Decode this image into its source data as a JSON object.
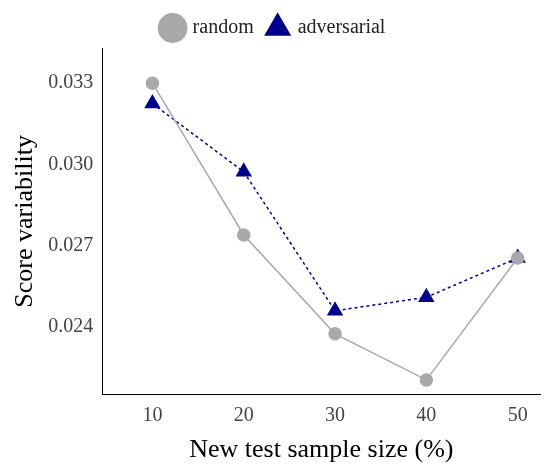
{
  "chart_data": {
    "type": "line",
    "x_label": "New test sample size (%)",
    "y_label": "Score variability",
    "x": [
      10,
      20,
      30,
      40,
      50
    ],
    "series": [
      {
        "name": "random",
        "color": "#a9a9a9",
        "marker": "circle",
        "line_style": "solid",
        "values": [
          0.033,
          0.0274,
          0.02375,
          0.02205,
          0.02655
        ]
      },
      {
        "name": "adversarial",
        "color": "#00008b",
        "marker": "triangle",
        "line_style": "dotted",
        "values": [
          0.03225,
          0.02973,
          0.0246,
          0.0251,
          0.02655
        ]
      }
    ],
    "xlim": [
      4.5,
      52.5
    ],
    "xticks": [
      10,
      20,
      30,
      40,
      50
    ],
    "ylim": [
      0.0215,
      0.0343
    ],
    "yticks": [
      0.024,
      0.027,
      {
        "value": 0.03,
        "label": "0.030"
      },
      0.033
    ],
    "grid": false,
    "legend": "top"
  }
}
